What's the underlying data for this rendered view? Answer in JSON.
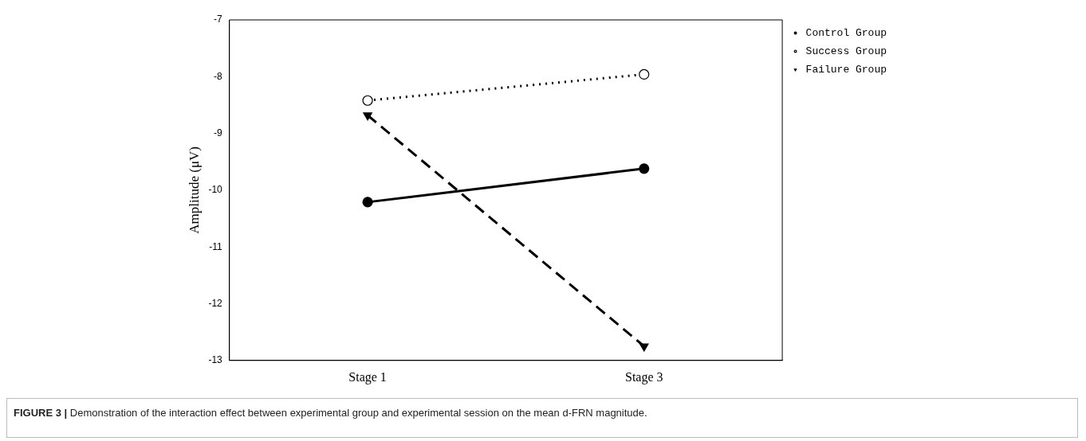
{
  "chart_data": {
    "type": "line",
    "categories": [
      "Stage 1",
      "Stage 3"
    ],
    "ylabel": "Amplitude (μV)",
    "ylim": [
      -13,
      -7
    ],
    "yticks": [
      -13,
      -12,
      -11,
      -10,
      -9,
      -8,
      -7
    ],
    "grid": false,
    "legend": "top right",
    "series": [
      {
        "name": "Control Group",
        "color": "#000000",
        "values": [
          -10.21,
          -9.62
        ],
        "marker": "circle",
        "line_style": "solid"
      },
      {
        "name": "Success Group",
        "color": "#000000",
        "values": [
          -8.42,
          -7.96
        ],
        "marker": "circle",
        "line_style": "dotted"
      },
      {
        "name": "Failure Group",
        "color": "#000000",
        "values": [
          -8.68,
          -12.75
        ],
        "marker": "triangle",
        "line_style": "dashed"
      }
    ],
    "annotations": [
      "FIGURE 3 | Demonstration of the interaction effect between experimental group and experimental session on the mean d-FRN magnitude."
    ]
  }
}
